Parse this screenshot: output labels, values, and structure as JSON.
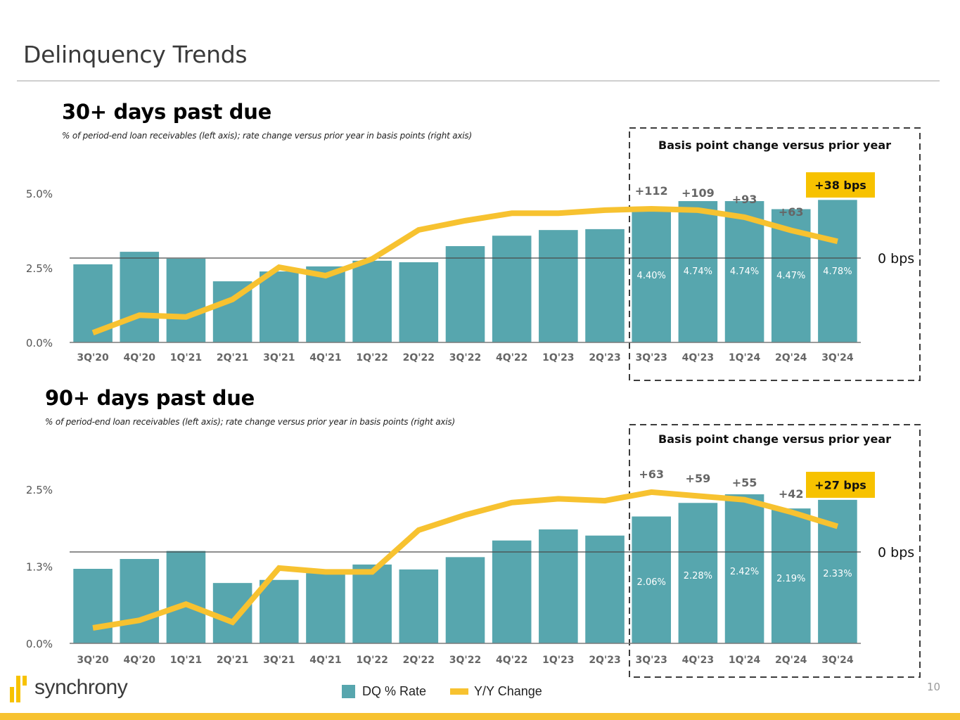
{
  "page": {
    "title": "Delinquency Trends",
    "page_number": "10",
    "logo_text": "synchrony"
  },
  "legend": {
    "bar_label": "DQ % Rate",
    "line_label": "Y/Y Change"
  },
  "colors": {
    "bar": "#57a6ae",
    "line": "#f7c230",
    "highlight_badge": "#f7c200",
    "axis_text": "#5a5a5a"
  },
  "chart_data": [
    {
      "type": "bar",
      "id": "dq30",
      "title": "30+ days past due",
      "subtitle": "% of period-end loan receivables (left axis); rate change versus prior year in basis points (right axis)",
      "categories": [
        "3Q'20",
        "4Q'20",
        "1Q'21",
        "2Q'21",
        "3Q'21",
        "4Q'21",
        "1Q'22",
        "2Q'22",
        "3Q'22",
        "4Q'22",
        "1Q'23",
        "2Q'23",
        "3Q'23",
        "4Q'23",
        "1Q'24",
        "2Q'24",
        "3Q'24"
      ],
      "series": [
        {
          "name": "DQ % Rate",
          "type": "bar",
          "axis": "left",
          "values": [
            2.62,
            3.04,
            2.81,
            2.05,
            2.38,
            2.55,
            2.74,
            2.69,
            3.23,
            3.58,
            3.77,
            3.8,
            4.4,
            4.74,
            4.74,
            4.47,
            4.78
          ]
        },
        {
          "name": "Y/Y Change",
          "type": "line",
          "axis": "right",
          "values": [
            -170,
            -130,
            -134,
            -94,
            -21,
            -40,
            -2,
            64,
            85,
            102,
            102,
            109,
            112,
            109,
            93,
            63,
            38
          ]
        }
      ],
      "bar_labels": {
        "3Q'23": "4.40%",
        "4Q'23": "4.74%",
        "1Q'24": "4.74%",
        "2Q'24": "4.47%",
        "3Q'24": "4.78%"
      },
      "line_labels": {
        "3Q'23": "+112",
        "4Q'23": "+109",
        "1Q'24": "+93",
        "2Q'24": "+63"
      },
      "highlight_label": "+38 bps",
      "box_title": "Basis point change versus prior year",
      "y_left_ticks": [
        "0.0%",
        "2.5%",
        "5.0%"
      ],
      "y_left_tick_values": [
        0,
        2.5,
        5.0
      ],
      "y_right_zero_label": "0 bps",
      "ylim_left": [
        0,
        5.0
      ],
      "ylim_right_bps_per_pct": 14.7,
      "highlight_from": "3Q'23"
    },
    {
      "type": "bar",
      "id": "dq90",
      "title": "90+ days past due",
      "subtitle": "% of period-end loan receivables (left axis); rate change versus prior year in basis points (right axis)",
      "categories": [
        "3Q'20",
        "4Q'20",
        "1Q'21",
        "2Q'21",
        "3Q'21",
        "4Q'21",
        "1Q'22",
        "2Q'22",
        "3Q'22",
        "4Q'22",
        "1Q'23",
        "2Q'23",
        "3Q'23",
        "4Q'23",
        "1Q'24",
        "2Q'24",
        "3Q'24"
      ],
      "series": [
        {
          "name": "DQ % Rate",
          "type": "bar",
          "axis": "left",
          "values": [
            1.21,
            1.37,
            1.5,
            0.98,
            1.03,
            1.14,
            1.28,
            1.2,
            1.4,
            1.67,
            1.85,
            1.75,
            2.06,
            2.28,
            2.42,
            2.19,
            2.33
          ]
        },
        {
          "name": "Y/Y Change",
          "type": "line",
          "axis": "right",
          "values": [
            -80,
            -72,
            -55,
            -74,
            -17,
            -21,
            -21,
            23,
            39,
            52,
            56,
            54,
            63,
            59,
            55,
            42,
            27
          ]
        }
      ],
      "bar_labels": {
        "3Q'23": "2.06%",
        "4Q'23": "2.28%",
        "1Q'24": "2.42%",
        "2Q'24": "2.19%",
        "3Q'24": "2.33%"
      },
      "line_labels": {
        "3Q'23": "+63",
        "4Q'23": "+59",
        "1Q'24": "+55",
        "2Q'24": "+42"
      },
      "highlight_label": "+27 bps",
      "box_title": "Basis point change versus prior year",
      "y_left_ticks": [
        "0.0%",
        "1.3%",
        "2.5%"
      ],
      "y_left_tick_values": [
        0,
        1.25,
        2.5
      ],
      "y_right_zero_label": "0 bps",
      "ylim_left": [
        0,
        2.5
      ],
      "highlight_from": "3Q'23"
    }
  ]
}
